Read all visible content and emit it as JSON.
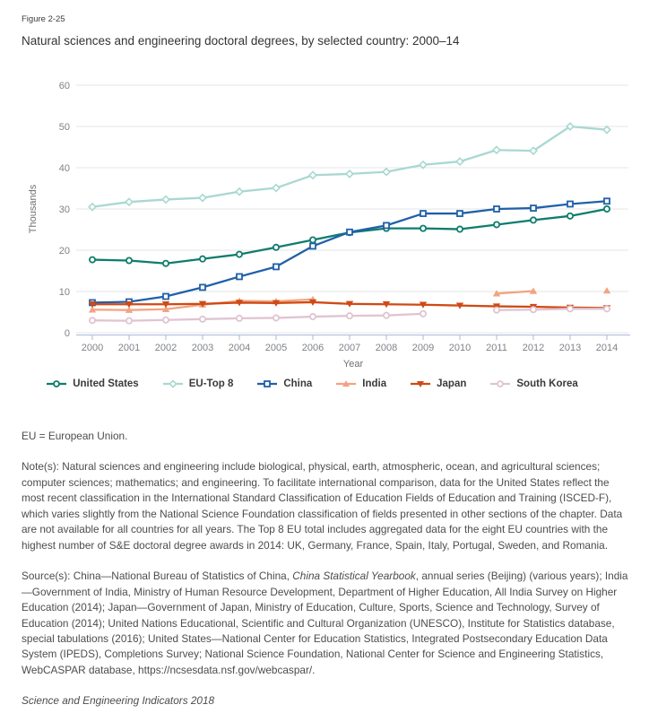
{
  "figure_label": "Figure 2-25",
  "title": "Natural sciences and engineering doctoral degrees, by selected country: 2000–14",
  "chart_data": {
    "type": "line",
    "title": "Natural sciences and engineering doctoral degrees, by selected country: 2000–14",
    "xlabel": "Year",
    "ylabel": "Thousands",
    "ylim": [
      0,
      60
    ],
    "yticks": [
      0,
      10,
      20,
      30,
      40,
      50,
      60
    ],
    "grid": true,
    "legend_position": "bottom",
    "x": [
      2000,
      2001,
      2002,
      2003,
      2004,
      2005,
      2006,
      2007,
      2008,
      2009,
      2010,
      2011,
      2012,
      2013,
      2014
    ],
    "series": [
      {
        "name": "United States",
        "color": "#0f7d6c",
        "marker": "circle",
        "values": [
          17.7,
          17.5,
          16.8,
          17.9,
          19.0,
          20.7,
          22.5,
          24.3,
          25.3,
          25.3,
          25.1,
          26.2,
          27.3,
          28.3,
          30.0
        ]
      },
      {
        "name": "EU-Top 8",
        "color": "#a9d8d1",
        "marker": "diamond",
        "values": [
          30.5,
          31.7,
          32.3,
          32.7,
          34.2,
          35.1,
          38.2,
          38.5,
          39.0,
          40.7,
          41.5,
          44.3,
          44.1,
          50.0,
          49.2
        ]
      },
      {
        "name": "China",
        "color": "#2060a9",
        "marker": "square",
        "values": [
          7.3,
          7.5,
          8.8,
          11.0,
          13.6,
          16.0,
          21.0,
          24.4,
          26.0,
          28.9,
          28.9,
          30.0,
          30.2,
          31.2,
          31.9
        ]
      },
      {
        "name": "India",
        "color": "#f2a482",
        "marker": "triangle-up",
        "values": [
          5.6,
          5.5,
          5.7,
          6.8,
          7.7,
          7.6,
          8.1,
          null,
          null,
          null,
          null,
          9.5,
          10.1,
          null,
          10.2
        ]
      },
      {
        "name": "Japan",
        "color": "#cf4a15",
        "marker": "triangle-down",
        "values": [
          6.9,
          6.9,
          6.9,
          7.0,
          7.3,
          7.2,
          7.4,
          7.0,
          6.9,
          6.8,
          6.6,
          6.4,
          6.3,
          6.1,
          6.0
        ]
      },
      {
        "name": "South Korea",
        "color": "#e0c4d2",
        "marker": "circle",
        "values": [
          3.0,
          2.9,
          3.1,
          3.3,
          3.5,
          3.6,
          3.9,
          4.1,
          4.2,
          4.6,
          null,
          5.5,
          5.6,
          5.8,
          5.8
        ]
      }
    ]
  },
  "abbreviation_note": "EU = European Union.",
  "notes": "Note(s): Natural sciences and engineering include biological, physical, earth, atmospheric, ocean, and agricultural sciences; computer sciences; mathematics; and engineering. To facilitate international comparison, data for the United States reflect the most recent classification in the International Standard Classification of Education Fields of Education and Training (ISCED-F), which varies slightly from the National Science Foundation classification of fields presented in other sections of the chapter. Data are not available for all countries for all years. The Top 8 EU total includes aggregated data for the eight EU countries with the highest number of S&E doctoral degree awards in 2014: UK, Germany, France, Spain, Italy, Portugal, Sweden, and Romania.",
  "source": {
    "parts": [
      {
        "text": "Source(s): China—National Bureau of Statistics of China, ",
        "italic": false
      },
      {
        "text": "China Statistical Yearbook",
        "italic": true
      },
      {
        "text": ", annual series (Beijing) (various years); India—Government of India, Ministry of Human Resource Development, Department of Higher Education, All India Survey on Higher Education (2014); Japan—Government of Japan, Ministry of Education, Culture, Sports, Science and Technology, Survey of Education (2014); United Nations Educational, Scientific and Cultural Organization (UNESCO), Institute for Statistics database, special tabulations (2016); United States—National Center for Education Statistics, Integrated Postsecondary Education Data System (IPEDS), Completions Survey; National Science Foundation, National Center for Science and Engineering Statistics, WebCASPAR database, https://ncsesdata.nsf.gov/webcaspar/.",
        "italic": false
      }
    ]
  },
  "footer": "Science and Engineering Indicators 2018"
}
